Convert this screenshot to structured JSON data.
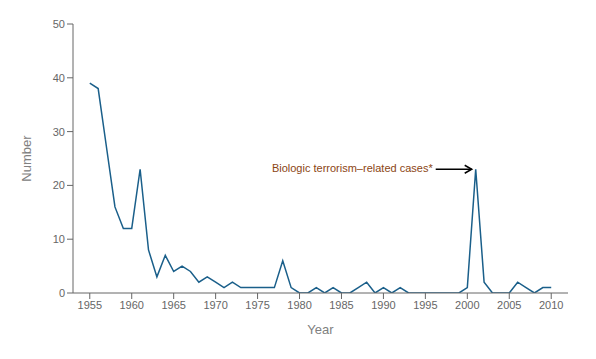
{
  "chart_data": {
    "type": "line",
    "x": [
      1955,
      1956,
      1957,
      1958,
      1959,
      1960,
      1961,
      1962,
      1963,
      1964,
      1965,
      1966,
      1967,
      1968,
      1969,
      1970,
      1971,
      1972,
      1973,
      1974,
      1975,
      1976,
      1977,
      1978,
      1979,
      1980,
      1981,
      1982,
      1983,
      1984,
      1985,
      1986,
      1987,
      1988,
      1989,
      1990,
      1991,
      1992,
      1993,
      1994,
      1995,
      1996,
      1997,
      1998,
      1999,
      2000,
      2001,
      2002,
      2003,
      2004,
      2005,
      2006,
      2007,
      2008,
      2009,
      2010
    ],
    "values": [
      39,
      38,
      27,
      16,
      12,
      12,
      23,
      8,
      3,
      7,
      4,
      5,
      4,
      2,
      3,
      2,
      1,
      2,
      1,
      1,
      1,
      1,
      1,
      6,
      1,
      0,
      0,
      1,
      0,
      1,
      0,
      0,
      1,
      2,
      0,
      1,
      0,
      1,
      0,
      0,
      0,
      0,
      0,
      0,
      0,
      1,
      23,
      2,
      0,
      0,
      0,
      2,
      1,
      0,
      1,
      1
    ],
    "color": "#1a5f8a",
    "xlabel": "Year",
    "ylabel": "Number",
    "xlim": [
      1953,
      2012
    ],
    "ylim": [
      0,
      50
    ],
    "xticks": [
      1955,
      1960,
      1965,
      1970,
      1975,
      1980,
      1985,
      1990,
      1995,
      2000,
      2005,
      2010
    ],
    "yticks": [
      0,
      10,
      20,
      30,
      40,
      50
    ],
    "grid": false,
    "annotations": [
      {
        "text": "Biologic terrorism–related cases*",
        "x": 2001,
        "y": 23,
        "color": "#8b4513"
      }
    ]
  }
}
